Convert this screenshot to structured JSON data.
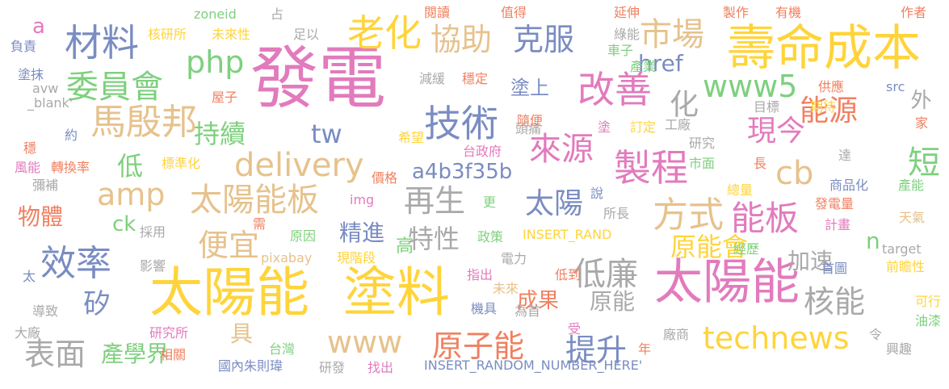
{
  "words": [
    {
      "text": "發電",
      "color": "#e27bbd"
    },
    {
      "text": "太陽能",
      "color": "#ffd43b"
    },
    {
      "text": "塗料",
      "color": "#ffd43b"
    },
    {
      "text": "成本",
      "color": "#ffd43b"
    },
    {
      "text": "壽命",
      "color": "#ffd43b"
    },
    {
      "text": "太陽能",
      "color": "#e27bbd"
    },
    {
      "text": "材料",
      "color": "#7a8cc2"
    },
    {
      "text": "老化",
      "color": "#ffd43b"
    },
    {
      "text": "技術",
      "color": "#7a8cc2"
    },
    {
      "text": "改善",
      "color": "#e27bbd"
    },
    {
      "text": "製程",
      "color": "#e27bbd"
    },
    {
      "text": "馬殷邦",
      "color": "#e6c28c"
    },
    {
      "text": "委員會",
      "color": "#7ed07e"
    },
    {
      "text": "效率",
      "color": "#7a8cc2"
    },
    {
      "text": "市場",
      "color": "#e6c28c"
    },
    {
      "text": "協助",
      "color": "#e6c28c"
    },
    {
      "text": "克服",
      "color": "#7a8cc2"
    },
    {
      "text": "php",
      "color": "#7ed07e"
    },
    {
      "text": "www5",
      "color": "#7ed07e"
    },
    {
      "text": "delivery",
      "color": "#e6c28c"
    },
    {
      "text": "太陽能板",
      "color": "#e6c28c"
    },
    {
      "text": "amp",
      "color": "#e6c28c"
    },
    {
      "text": "方式",
      "color": "#e6c28c"
    },
    {
      "text": "能板",
      "color": "#e27bbd"
    },
    {
      "text": "能源",
      "color": "#f08060"
    },
    {
      "text": "現今",
      "color": "#e27bbd"
    },
    {
      "text": "來源",
      "color": "#e27bbd"
    },
    {
      "text": "低廉",
      "color": "#a9a9a9"
    },
    {
      "text": "原子能",
      "color": "#f08060"
    },
    {
      "text": "提升",
      "color": "#7a8cc2"
    },
    {
      "text": "technews",
      "color": "#ffd43b"
    },
    {
      "text": "表面",
      "color": "#a9a9a9"
    },
    {
      "text": "www",
      "color": "#e6c28c"
    },
    {
      "text": "便宜",
      "color": "#e6c28c"
    },
    {
      "text": "持續",
      "color": "#7ed07e"
    },
    {
      "text": "太陽",
      "color": "#7a8cc2"
    },
    {
      "text": "再生",
      "color": "#a9a9a9"
    },
    {
      "text": "核能",
      "color": "#a9a9a9"
    },
    {
      "text": "cb",
      "color": "#e6c28c"
    },
    {
      "text": "tw",
      "color": "#7a8cc2"
    },
    {
      "text": "a4b3f35b",
      "color": "#7a8cc2"
    },
    {
      "text": "原能會",
      "color": "#ffd43b"
    },
    {
      "text": "短",
      "color": "#7ed07e"
    },
    {
      "text": "低",
      "color": "#7ed07e"
    },
    {
      "text": "化",
      "color": "#a9a9a9"
    },
    {
      "text": "外",
      "color": "#a9a9a9"
    },
    {
      "text": "href",
      "color": "#7a8cc2"
    },
    {
      "text": "特性",
      "color": "#a9a9a9"
    },
    {
      "text": "精進",
      "color": "#7a8cc2"
    },
    {
      "text": "加速",
      "color": "#a9a9a9"
    },
    {
      "text": "原能",
      "color": "#a9a9a9"
    },
    {
      "text": "物體",
      "color": "#f08060"
    },
    {
      "text": "產學界",
      "color": "#7ed07e"
    },
    {
      "text": "成果",
      "color": "#f08060"
    },
    {
      "text": "矽",
      "color": "#7a8cc2"
    },
    {
      "text": "ck",
      "color": "#7ed07e"
    },
    {
      "text": "a",
      "color": "#e27bbd"
    },
    {
      "text": "塗上",
      "color": "#7a8cc2"
    },
    {
      "text": "具",
      "color": "#e6c28c"
    },
    {
      "text": "n",
      "color": "#7ed07e"
    },
    {
      "text": "高",
      "color": "#7ed07e"
    },
    {
      "text": "閱讀",
      "color": "#f08060"
    },
    {
      "text": "值得",
      "color": "#f08060"
    },
    {
      "text": "延伸",
      "color": "#f08060"
    },
    {
      "text": "製作",
      "color": "#f08060"
    },
    {
      "text": "有機",
      "color": "#f08060"
    },
    {
      "text": "作者",
      "color": "#f08060"
    },
    {
      "text": "綠能",
      "color": "#a9a9a9"
    },
    {
      "text": "車子",
      "color": "#7ed07e"
    },
    {
      "text": "產業",
      "color": "#7ed07e"
    },
    {
      "text": "核研所",
      "color": "#ffd43b"
    },
    {
      "text": "未來性",
      "color": "#ffd43b"
    },
    {
      "text": "zoneid",
      "color": "#7ed07e"
    },
    {
      "text": "占",
      "color": "#a9a9a9"
    },
    {
      "text": "足以",
      "color": "#a9a9a9"
    },
    {
      "text": "負責",
      "color": "#7a8cc2"
    },
    {
      "text": "塗抹",
      "color": "#7a8cc2"
    },
    {
      "text": "avw",
      "color": "#a9a9a9"
    },
    {
      "text": "_blank'",
      "color": "#a9a9a9"
    },
    {
      "text": "屋子",
      "color": "#f08060"
    },
    {
      "text": "減緩",
      "color": "#a9a9a9"
    },
    {
      "text": "穩定",
      "color": "#f08060"
    },
    {
      "text": "供應",
      "color": "#f08060"
    },
    {
      "text": "src",
      "color": "#7a8cc2"
    },
    {
      "text": "期待",
      "color": "#ffd43b"
    },
    {
      "text": "目標",
      "color": "#a9a9a9"
    },
    {
      "text": "隨便",
      "color": "#f08060"
    },
    {
      "text": "希望",
      "color": "#ffd43b"
    },
    {
      "text": "頭痛",
      "color": "#a9a9a9"
    },
    {
      "text": "塗",
      "color": "#e27bbd"
    },
    {
      "text": "訂定",
      "color": "#ffd43b"
    },
    {
      "text": "工廠",
      "color": "#a9a9a9"
    },
    {
      "text": "研究",
      "color": "#a9a9a9"
    },
    {
      "text": "家",
      "color": "#f08060"
    },
    {
      "text": "約",
      "color": "#7a8cc2"
    },
    {
      "text": "穩",
      "color": "#f08060"
    },
    {
      "text": "台政府",
      "color": "#e27bbd"
    },
    {
      "text": "市面",
      "color": "#7ed07e"
    },
    {
      "text": "風能",
      "color": "#e27bbd"
    },
    {
      "text": "轉換率",
      "color": "#f08060"
    },
    {
      "text": "標準化",
      "color": "#ffd43b"
    },
    {
      "text": "長",
      "color": "#f08060"
    },
    {
      "text": "達",
      "color": "#a9a9a9"
    },
    {
      "text": "價格",
      "color": "#f08060"
    },
    {
      "text": "彌補",
      "color": "#a9a9a9"
    },
    {
      "text": "商品化",
      "color": "#7a8cc2"
    },
    {
      "text": "產能",
      "color": "#7ed07e"
    },
    {
      "text": "總量",
      "color": "#ffd43b"
    },
    {
      "text": "img",
      "color": "#e27bbd"
    },
    {
      "text": "說",
      "color": "#7a8cc2"
    },
    {
      "text": "發電量",
      "color": "#f08060"
    },
    {
      "text": "更",
      "color": "#7ed07e"
    },
    {
      "text": "所長",
      "color": "#a9a9a9"
    },
    {
      "text": "天氣",
      "color": "#e6c28c"
    },
    {
      "text": "需",
      "color": "#f08060"
    },
    {
      "text": "計畫",
      "color": "#e27bbd"
    },
    {
      "text": "採用",
      "color": "#a9a9a9"
    },
    {
      "text": "原因",
      "color": "#7ed07e"
    },
    {
      "text": "政策",
      "color": "#7ed07e"
    },
    {
      "text": "INSERT_RAND",
      "color": "#ffd43b"
    },
    {
      "text": "經歷",
      "color": "#7ed07e"
    },
    {
      "text": "target",
      "color": "#a9a9a9"
    },
    {
      "text": "影響",
      "color": "#a9a9a9"
    },
    {
      "text": "pixabay",
      "color": "#e6c28c"
    },
    {
      "text": "現階段",
      "color": "#ffd43b"
    },
    {
      "text": "電力",
      "color": "#a9a9a9"
    },
    {
      "text": "首圖",
      "color": "#7a8cc2"
    },
    {
      "text": "前瞻性",
      "color": "#ffd43b"
    },
    {
      "text": "太",
      "color": "#7a8cc2"
    },
    {
      "text": "指出",
      "color": "#e27bbd"
    },
    {
      "text": "低到",
      "color": "#f08060"
    },
    {
      "text": "未來",
      "color": "#e6c28c"
    },
    {
      "text": "機具",
      "color": "#7a8cc2"
    },
    {
      "text": "為首",
      "color": "#a9a9a9"
    },
    {
      "text": "導致",
      "color": "#a9a9a9"
    },
    {
      "text": "可行",
      "color": "#ffd43b"
    },
    {
      "text": "油漆",
      "color": "#7ed07e"
    },
    {
      "text": "大廠",
      "color": "#a9a9a9"
    },
    {
      "text": "研究所",
      "color": "#e27bbd"
    },
    {
      "text": "受",
      "color": "#e27bbd"
    },
    {
      "text": "廠商",
      "color": "#a9a9a9"
    },
    {
      "text": "令",
      "color": "#a9a9a9"
    },
    {
      "text": "相關",
      "color": "#f08060"
    },
    {
      "text": "台灣",
      "color": "#7ed07e"
    },
    {
      "text": "年",
      "color": "#f08060"
    },
    {
      "text": "興趣",
      "color": "#a9a9a9"
    },
    {
      "text": "國內朱則瑋",
      "color": "#7a8cc2"
    },
    {
      "text": "研發",
      "color": "#a9a9a9"
    },
    {
      "text": "找出",
      "color": "#e27bbd"
    },
    {
      "text": "INSERT_RANDOM_NUMBER_HERE'",
      "color": "#7a8cc2"
    }
  ]
}
